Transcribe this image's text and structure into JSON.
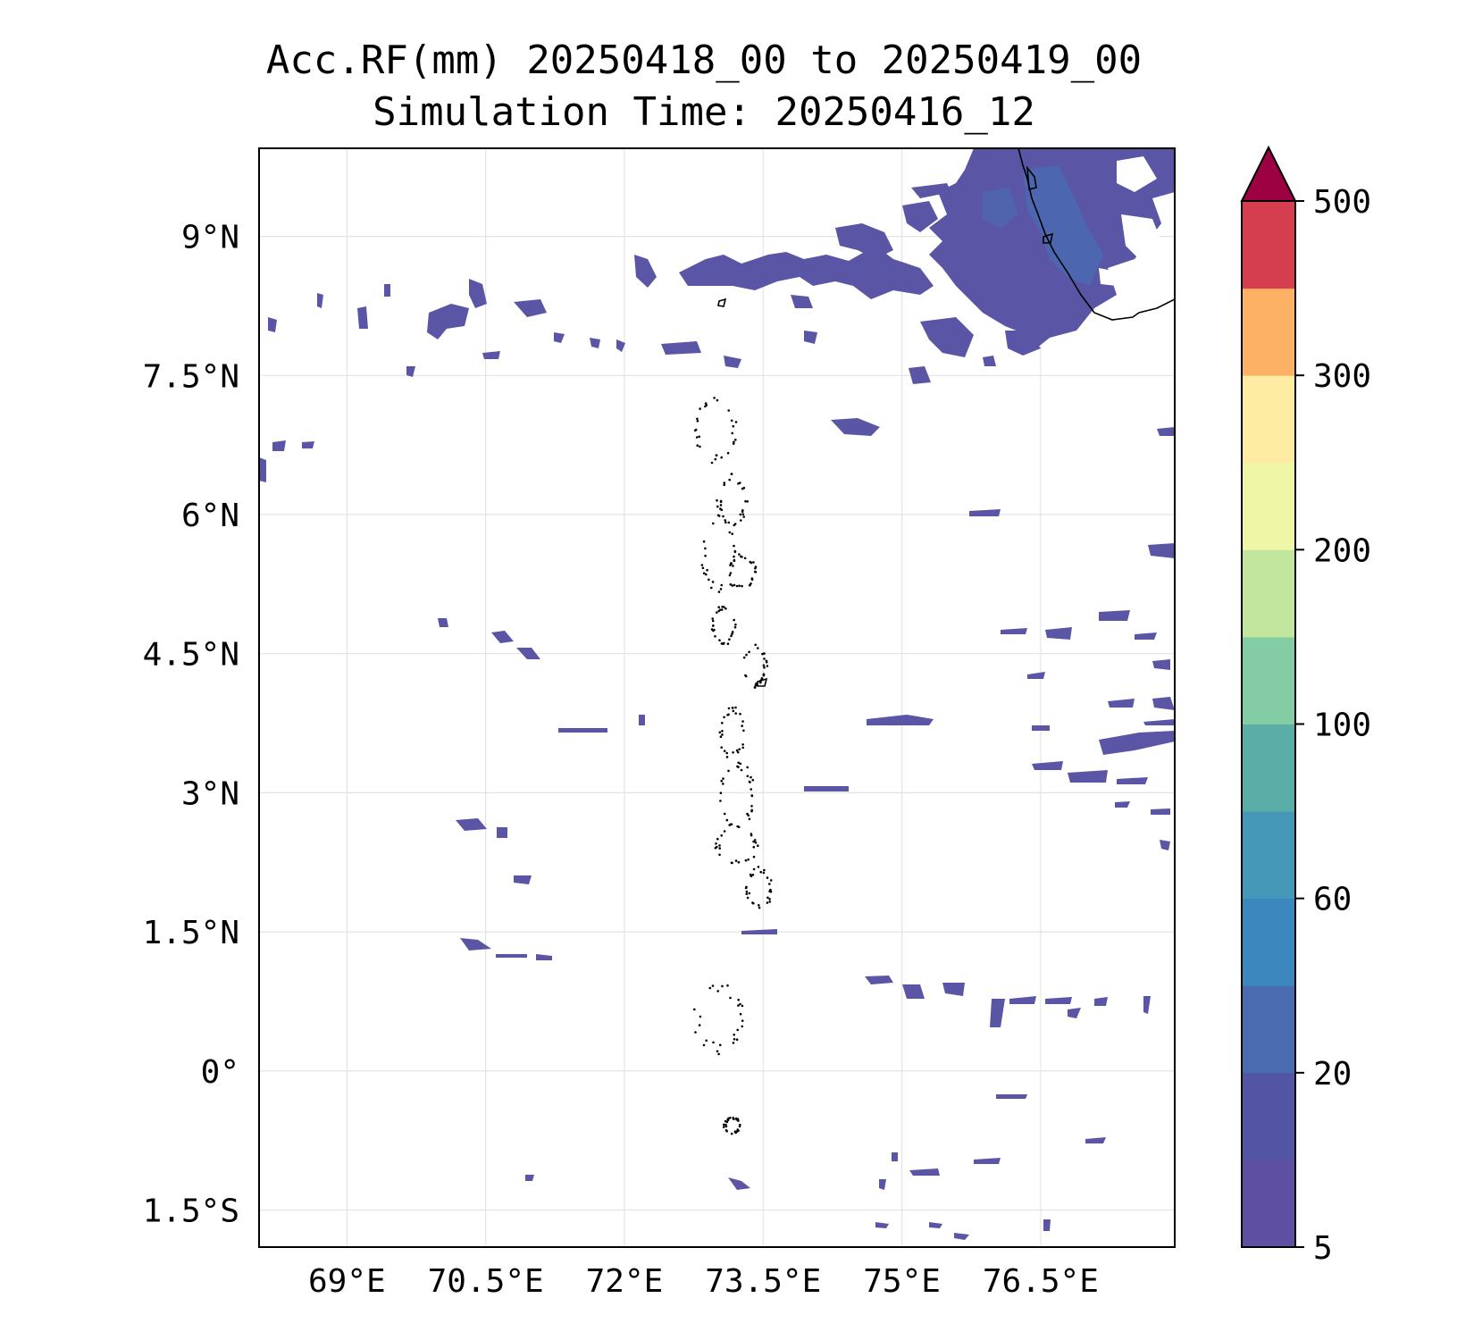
{
  "title": {
    "line1": "Acc.RF(mm) 20250418_00 to 20250419_00",
    "line2": "Simulation Time: 20250416_12"
  },
  "map": {
    "lon_ticks": [
      "69°E",
      "70.5°E",
      "72°E",
      "73.5°E",
      "75°E",
      "76.5°E"
    ],
    "lat_ticks": [
      "9°N",
      "7.5°N",
      "6°N",
      "4.5°N",
      "3°N",
      "1.5°N",
      "0°",
      "1.5°S"
    ],
    "lon_values": [
      69,
      70.5,
      72,
      73.5,
      75,
      76.5
    ],
    "lat_values": [
      9,
      7.5,
      6,
      4.5,
      3,
      1.5,
      0,
      -1.5
    ],
    "lon_range": [
      68.05,
      77.95
    ],
    "lat_range": [
      -1.9,
      9.95
    ],
    "grid": true
  },
  "colorbar": {
    "labels": [
      "5",
      "20",
      "60",
      "100",
      "200",
      "300",
      "500"
    ],
    "extend": "max",
    "colors": [
      "#5e4fa2",
      "#5155a4",
      "#4a6bb0",
      "#3b87be",
      "#4598b7",
      "#5aaea7",
      "#84cca4",
      "#c3e69f",
      "#eff7a6",
      "#feeca2",
      "#fdb164",
      "#d53e4f",
      "#9e0142"
    ]
  },
  "rain_color": "#5a55a5"
}
